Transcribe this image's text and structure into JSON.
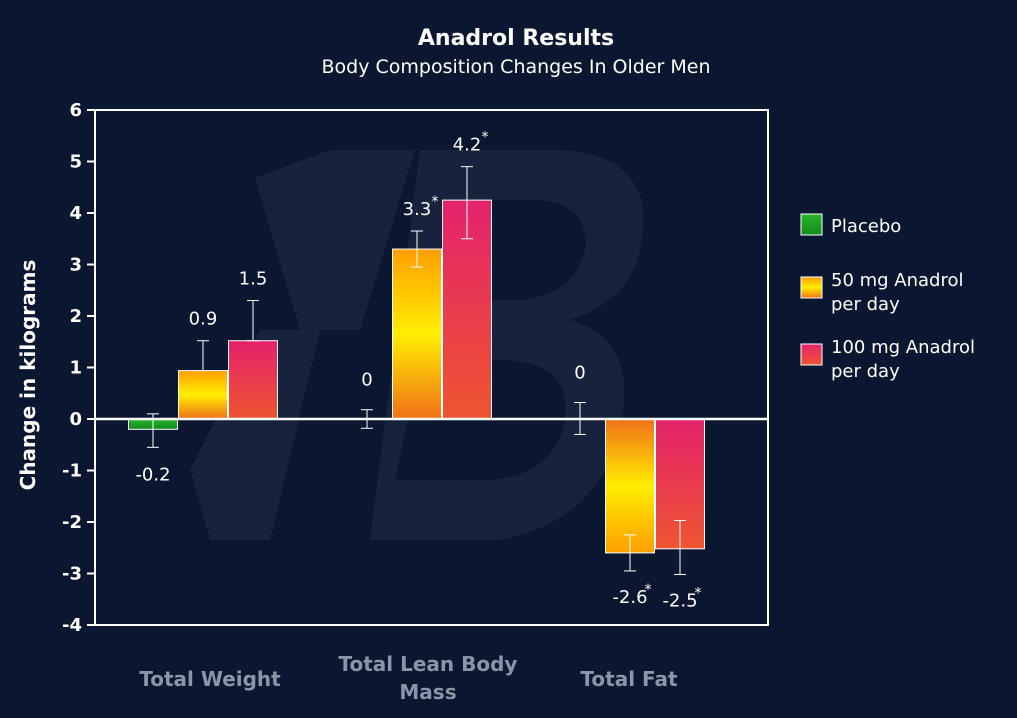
{
  "colors": {
    "background": "#0b1730",
    "axis": "#ffffff",
    "category_label": "#8a95a8",
    "placebo": "#1d9e24",
    "anadrol_50_top": "#ffb300",
    "anadrol_50_mid": "#ffee00",
    "anadrol_50_bottom": "#f07d16",
    "anadrol_100_top": "#e5246a",
    "anadrol_100_bottom": "#ef5a2f"
  },
  "chart_data": {
    "type": "bar",
    "title": "Anadrol Results",
    "subtitle": "Body Composition Changes In Older Men",
    "ylabel": "Change in kilograms",
    "xlabel": "",
    "ylim": [
      -4,
      6
    ],
    "yticks": [
      "-4",
      "-3",
      "-2",
      "-1",
      "0",
      "1",
      "2",
      "3",
      "4",
      "5",
      "6"
    ],
    "categories": [
      {
        "lines": [
          "Total Weight"
        ]
      },
      {
        "lines": [
          "Total Lean Body",
          "Mass"
        ]
      },
      {
        "lines": [
          "Total Fat"
        ]
      }
    ],
    "legend_position": "right",
    "grid": false,
    "series": [
      {
        "name": "Placebo",
        "legend_lines": [
          "Placebo"
        ],
        "values": [
          -0.2,
          0,
          0
        ],
        "labels": [
          "-0.2",
          "0",
          "0"
        ],
        "significant": [
          false,
          false,
          false
        ],
        "error_low": [
          -0.55,
          -0.18,
          -0.3
        ],
        "error_high": [
          0.1,
          0.18,
          0.32
        ]
      },
      {
        "name": "50 mg Anadrol per day",
        "legend_lines": [
          "50 mg Anadrol",
          "per day"
        ],
        "values": [
          0.94,
          3.3,
          -2.6
        ],
        "labels": [
          "0.9",
          "3.3",
          "-2.6"
        ],
        "significant": [
          false,
          true,
          true
        ],
        "error_low": [
          0.94,
          2.95,
          -2.95
        ],
        "error_high": [
          1.52,
          3.65,
          -2.25
        ]
      },
      {
        "name": "100 mg Anadrol per day",
        "legend_lines": [
          "100 mg Anadrol",
          "per day"
        ],
        "values": [
          1.52,
          4.25,
          -2.52
        ],
        "labels": [
          "1.5",
          "4.2",
          "-2.5"
        ],
        "significant": [
          false,
          true,
          true
        ],
        "error_low": [
          1.52,
          3.5,
          -3.02
        ],
        "error_high": [
          2.3,
          4.9,
          -1.97
        ]
      }
    ],
    "significance_marker": "*"
  }
}
